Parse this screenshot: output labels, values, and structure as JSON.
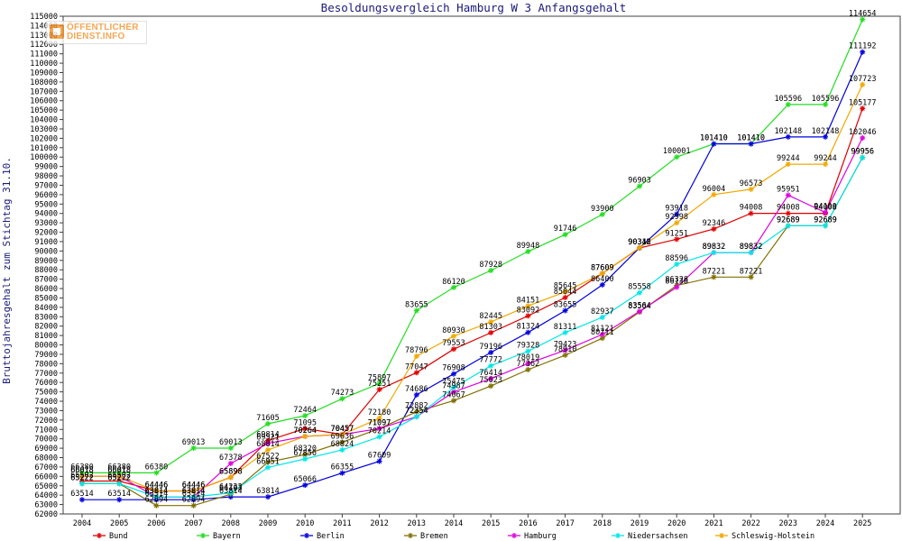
{
  "logo": {
    "line1": "ÖFFENTLICHER",
    "line2": "DIENST.INFO"
  },
  "chart_data": {
    "type": "line",
    "title": "Besoldungsvergleich Hamburg W 3 Anfangsgehalt",
    "xlabel": "",
    "ylabel": "Bruttojahresgehalt zum Stichtag 31.10.",
    "ylim": [
      62000,
      115000
    ],
    "ytick_step": 1000,
    "grid": false,
    "legend_position": "bottom",
    "categories": [
      "2004",
      "2005",
      "2006",
      "2007",
      "2008",
      "2009",
      "2010",
      "2011",
      "2012",
      "2013",
      "2014",
      "2015",
      "2016",
      "2017",
      "2018",
      "2019",
      "2020",
      "2021",
      "2022",
      "2023",
      "2024",
      "2025"
    ],
    "series": [
      {
        "name": "Bund",
        "color": "#e00000",
        "values": [
          65502,
          65502,
          64446,
          64446,
          65898,
          69814,
          71095,
          70457,
          75251,
          77047,
          79553,
          81303,
          83092,
          85044,
          87609,
          90318,
          91251,
          92346,
          94008,
          94008,
          94008,
          105177
        ]
      },
      {
        "name": "Bayern",
        "color": "#22dd22",
        "values": [
          66380,
          66380,
          66380,
          69013,
          69013,
          71605,
          72464,
          74273,
          75897,
          83655,
          86120,
          87928,
          89948,
          91746,
          93900,
          96903,
          100001,
          101410,
          101410,
          105596,
          105596,
          114654
        ]
      },
      {
        "name": "Berlin",
        "color": "#0000dd",
        "values": [
          63514,
          63514,
          63514,
          63514,
          63814,
          63814,
          65066,
          66355,
          67609,
          74686,
          76908,
          79196,
          81324,
          83655,
          86400,
          90342,
          93918,
          101410,
          101410,
          102148,
          102148,
          111192
        ]
      },
      {
        "name": "Bremen",
        "color": "#807000",
        "values": [
          65222,
          65222,
          62894,
          62894,
          64103,
          67522,
          68320,
          69636,
          71097,
          72882,
          74067,
          75623,
          77362,
          78910,
          80711,
          83504,
          86328,
          87221,
          87221,
          92689,
          92689,
          99956
        ]
      },
      {
        "name": "Hamburg",
        "color": "#dd00dd",
        "values": [
          66018,
          66018,
          63814,
          63814,
          67378,
          69521,
          70264,
          70457,
          71097,
          72354,
          74987,
          76414,
          78019,
          79423,
          81121,
          83564,
          86138,
          89832,
          89832,
          95951,
          94100,
          102046
        ]
      },
      {
        "name": "Niedersachsen",
        "color": "#00e6e6",
        "values": [
          65222,
          65222,
          63814,
          63814,
          64233,
          66951,
          67856,
          68824,
          70214,
          72354,
          75475,
          77772,
          79328,
          81311,
          82937,
          85558,
          88596,
          89832,
          89832,
          92689,
          92689,
          99956
        ]
      },
      {
        "name": "Schleswig-Holstein",
        "color": "#f0a800",
        "values": [
          66018,
          66018,
          64446,
          64446,
          65898,
          68814,
          70264,
          70457,
          72180,
          78796,
          80930,
          82445,
          84151,
          85645,
          87609,
          90342,
          92998,
          96004,
          96573,
          99244,
          99244,
          107723
        ]
      }
    ]
  }
}
